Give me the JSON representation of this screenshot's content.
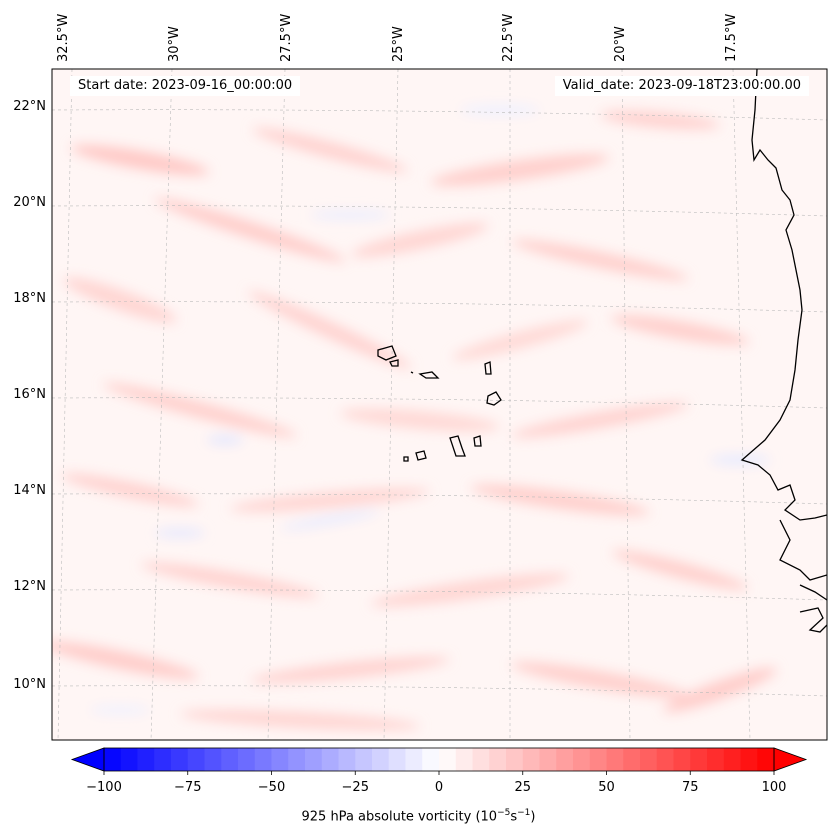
{
  "map": {
    "start_date_label": "Start date: 2023-09-16_00:00:00",
    "valid_date_label": "Valid_date: 2023-09-18T23:00:00.00",
    "lon_labels": [
      "32.5°W",
      "30°W",
      "27.5°W",
      "25°W",
      "22.5°W",
      "20°W",
      "17.5°W"
    ],
    "lat_labels": [
      "22°N",
      "20°N",
      "18°N",
      "16°N",
      "14°N",
      "12°N",
      "10°N"
    ],
    "region": {
      "lon_min": -32.7,
      "lon_max": -16.0,
      "lat_min": 8.9,
      "lat_max": 22.7
    }
  },
  "colorbar": {
    "title_main": "925 hPa absolute vorticity (10",
    "title_exp1": "−5",
    "title_mid": "s",
    "title_exp2": "−1",
    "title_end": ")",
    "ticks": [
      "−100",
      "−75",
      "−50",
      "−25",
      "0",
      "25",
      "50",
      "75",
      "100"
    ],
    "min": -100,
    "max": 100,
    "step": 5,
    "colormap": "bwr",
    "extend": "both"
  },
  "colors": {
    "negative": "#0000ff",
    "zero": "#ffffff",
    "positive": "#ff0000",
    "coast": "#000000",
    "grid": "#bbbbbb"
  }
}
